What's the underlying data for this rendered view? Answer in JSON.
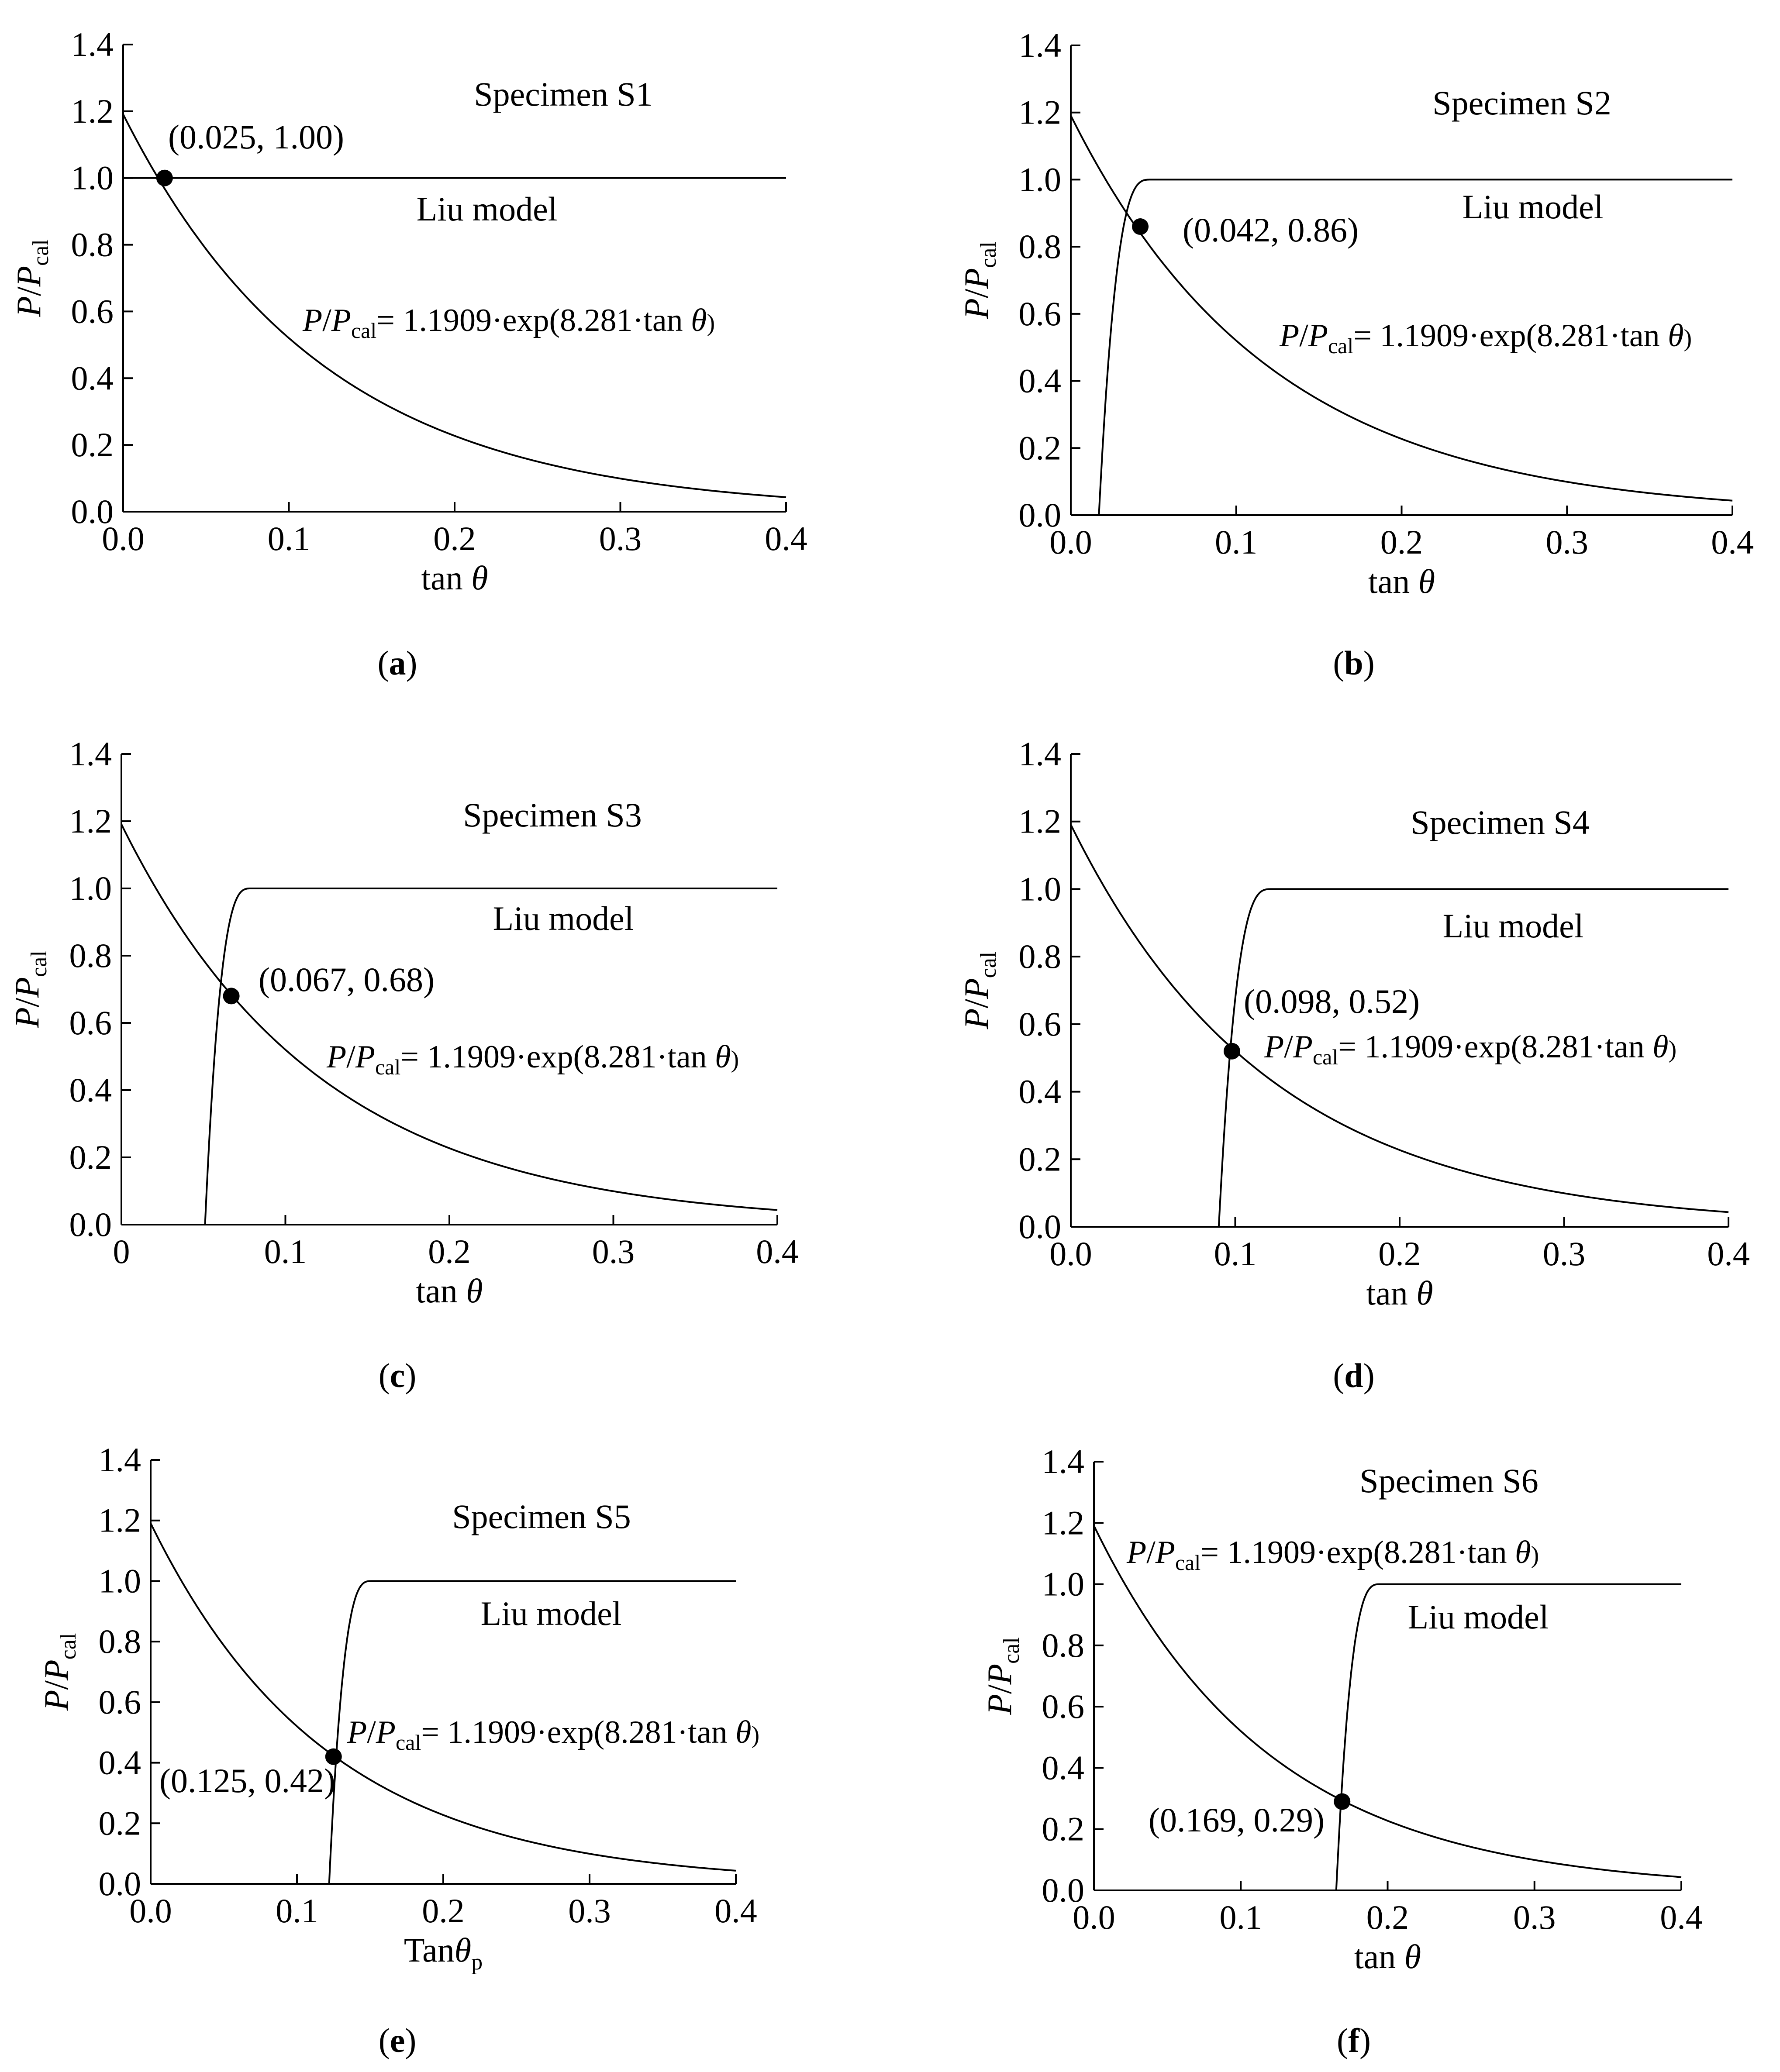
{
  "chart_data": [
    {
      "id": "a",
      "type": "line",
      "caption": "a",
      "specimen_label": "Specimen S1",
      "model_label": "Liu model",
      "eq_lhs_p": "P/P",
      "eq_lhs_sub": "cal",
      "eq_rhs": "= 1.1909·exp(8.281·tan ",
      "eq_theta": "θ",
      "eq_close": ")",
      "point_label": "(0.025, 1.00)",
      "intersection": [
        0.025,
        1.0
      ],
      "xlabel_main": "tan ",
      "xlabel_var": "θ",
      "xlabel_sub": "",
      "ylabel_p1": "P",
      "ylabel_p2": "P",
      "ylabel_sub": "cal",
      "xlim": [
        0,
        0.4
      ],
      "ylim": [
        0,
        1.4
      ],
      "xticks": [
        "0.0",
        "0.1",
        "0.2",
        "0.3",
        "0.4"
      ],
      "yticks": [
        "0.0",
        "0.2",
        "0.4",
        "0.6",
        "0.8",
        "1.0",
        "1.2",
        "1.4"
      ],
      "series": [
        {
          "name": "P/Pcal = 1.1909·exp(8.281·tan θ)",
          "kind": "exp-decay",
          "a": 1.1909,
          "b": 8.281
        },
        {
          "name": "Liu model",
          "kind": "liu",
          "x_start": 0.0,
          "x_plateau": 0.0,
          "plateau": 1.0
        }
      ]
    },
    {
      "id": "b",
      "type": "line",
      "caption": "b",
      "specimen_label": "Specimen S2",
      "model_label": "Liu model",
      "eq_lhs_p": "P/P",
      "eq_lhs_sub": "cal",
      "eq_rhs": "= 1.1909·exp(8.281·tan ",
      "eq_theta": "θ",
      "eq_close": ")",
      "point_label": "(0.042, 0.86)",
      "intersection": [
        0.042,
        0.86
      ],
      "xlabel_main": "tan ",
      "xlabel_var": "θ",
      "xlabel_sub": "",
      "ylabel_p1": "P",
      "ylabel_p2": "P",
      "ylabel_sub": "cal",
      "xlim": [
        0,
        0.4
      ],
      "ylim": [
        0,
        1.4
      ],
      "xticks": [
        "0.0",
        "0.1",
        "0.2",
        "0.3",
        "0.4"
      ],
      "yticks": [
        "0.0",
        "0.2",
        "0.4",
        "0.6",
        "0.8",
        "1.0",
        "1.2",
        "1.4"
      ],
      "series": [
        {
          "name": "P/Pcal = 1.1909·exp(8.281·tan θ)",
          "kind": "exp-decay",
          "a": 1.1909,
          "b": 8.281
        },
        {
          "name": "Liu model",
          "kind": "liu",
          "x_start": 0.017,
          "x_plateau": 0.048,
          "plateau": 1.0
        }
      ]
    },
    {
      "id": "c",
      "type": "line",
      "caption": "c",
      "specimen_label": "Specimen S3",
      "model_label": "Liu model",
      "eq_lhs_p": "P/P",
      "eq_lhs_sub": "cal",
      "eq_rhs": "= 1.1909·exp(8.281·tan ",
      "eq_theta": "θ",
      "eq_close": ")",
      "point_label": "(0.067, 0.68)",
      "intersection": [
        0.067,
        0.68
      ],
      "xlabel_main": "tan ",
      "xlabel_var": "θ",
      "xlabel_sub": "",
      "ylabel_p1": "P",
      "ylabel_p2": "P",
      "ylabel_sub": "cal",
      "xlim": [
        0,
        0.4
      ],
      "ylim": [
        0,
        1.4
      ],
      "xticks": [
        "0",
        "0.1",
        "0.2",
        "0.3",
        "0.4"
      ],
      "yticks": [
        "0.0",
        "0.2",
        "0.4",
        "0.6",
        "0.8",
        "1.0",
        "1.2",
        "1.4"
      ],
      "series": [
        {
          "name": "P/Pcal = 1.1909·exp(8.281·tan θ)",
          "kind": "exp-decay",
          "a": 1.1909,
          "b": 8.281
        },
        {
          "name": "Liu model",
          "kind": "liu",
          "x_start": 0.051,
          "x_plateau": 0.079,
          "plateau": 1.0
        }
      ]
    },
    {
      "id": "d",
      "type": "line",
      "caption": "d",
      "specimen_label": "Specimen S4",
      "model_label": "Liu model",
      "eq_lhs_p": "P/P",
      "eq_lhs_sub": "cal",
      "eq_rhs": "= 1.1909·exp(8.281·tan ",
      "eq_theta": "θ",
      "eq_close": ")",
      "point_label": "(0.098, 0.52)",
      "intersection": [
        0.098,
        0.52
      ],
      "xlabel_main": "tan ",
      "xlabel_var": "θ",
      "xlabel_sub": "",
      "ylabel_p1": "P",
      "ylabel_p2": "P",
      "ylabel_sub": "cal",
      "xlim": [
        0,
        0.4
      ],
      "ylim": [
        0,
        1.4
      ],
      "xticks": [
        "0.0",
        "0.1",
        "0.2",
        "0.3",
        "0.4"
      ],
      "yticks": [
        "0.0",
        "0.2",
        "0.4",
        "0.6",
        "0.8",
        "1.0",
        "1.2",
        "1.4"
      ],
      "series": [
        {
          "name": "P/Pcal = 1.1909·exp(8.281·tan θ)",
          "kind": "exp-decay",
          "a": 1.1909,
          "b": 8.281
        },
        {
          "name": "Liu model",
          "kind": "liu",
          "x_start": 0.09,
          "x_plateau": 0.122,
          "plateau": 1.0
        }
      ]
    },
    {
      "id": "e",
      "type": "line",
      "caption": "e",
      "specimen_label": "Specimen S5",
      "model_label": "Liu model",
      "eq_lhs_p": "P/P",
      "eq_lhs_sub": "cal",
      "eq_rhs": "= 1.1909·exp(8.281·tan ",
      "eq_theta": "θ",
      "eq_close": ")",
      "point_label": "(0.125, 0.42)",
      "intersection": [
        0.125,
        0.42
      ],
      "xlabel_main": "Tan",
      "xlabel_var": "θ",
      "xlabel_sub": "p",
      "ylabel_p1": "P",
      "ylabel_p2": "P",
      "ylabel_sub": "cal",
      "xlim": [
        0,
        0.4
      ],
      "ylim": [
        0,
        1.4
      ],
      "xticks": [
        "0.0",
        "0.1",
        "0.2",
        "0.3",
        "0.4"
      ],
      "yticks": [
        "0.0",
        "0.2",
        "0.4",
        "0.6",
        "0.8",
        "1.0",
        "1.2",
        "1.4"
      ],
      "series": [
        {
          "name": "P/Pcal = 1.1909·exp(8.281·tan θ)",
          "kind": "exp-decay",
          "a": 1.1909,
          "b": 8.281
        },
        {
          "name": "Liu model",
          "kind": "liu",
          "x_start": 0.122,
          "x_plateau": 0.151,
          "plateau": 1.0
        }
      ]
    },
    {
      "id": "f",
      "type": "line",
      "caption": "f",
      "specimen_label": "Specimen S6",
      "model_label": "Liu model",
      "eq_lhs_p": "P/P",
      "eq_lhs_sub": "cal",
      "eq_rhs": "= 1.1909·exp(8.281·tan ",
      "eq_theta": "θ",
      "eq_close": ")",
      "point_label": "(0.169, 0.29)",
      "intersection": [
        0.169,
        0.29
      ],
      "xlabel_main": "tan ",
      "xlabel_var": "θ",
      "xlabel_sub": "",
      "ylabel_p1": "P",
      "ylabel_p2": "P",
      "ylabel_sub": "cal",
      "xlim": [
        0,
        0.4
      ],
      "ylim": [
        0,
        1.4
      ],
      "xticks": [
        "0.0",
        "0.1",
        "0.2",
        "0.3",
        "0.4"
      ],
      "yticks": [
        "0.0",
        "0.2",
        "0.4",
        "0.6",
        "0.8",
        "1.0",
        "1.2",
        "1.4"
      ],
      "series": [
        {
          "name": "P/Pcal = 1.1909·exp(8.281·tan θ)",
          "kind": "exp-decay",
          "a": 1.1909,
          "b": 8.281
        },
        {
          "name": "Liu model",
          "kind": "liu",
          "x_start": 0.165,
          "x_plateau": 0.195,
          "plateau": 1.0
        }
      ]
    }
  ]
}
